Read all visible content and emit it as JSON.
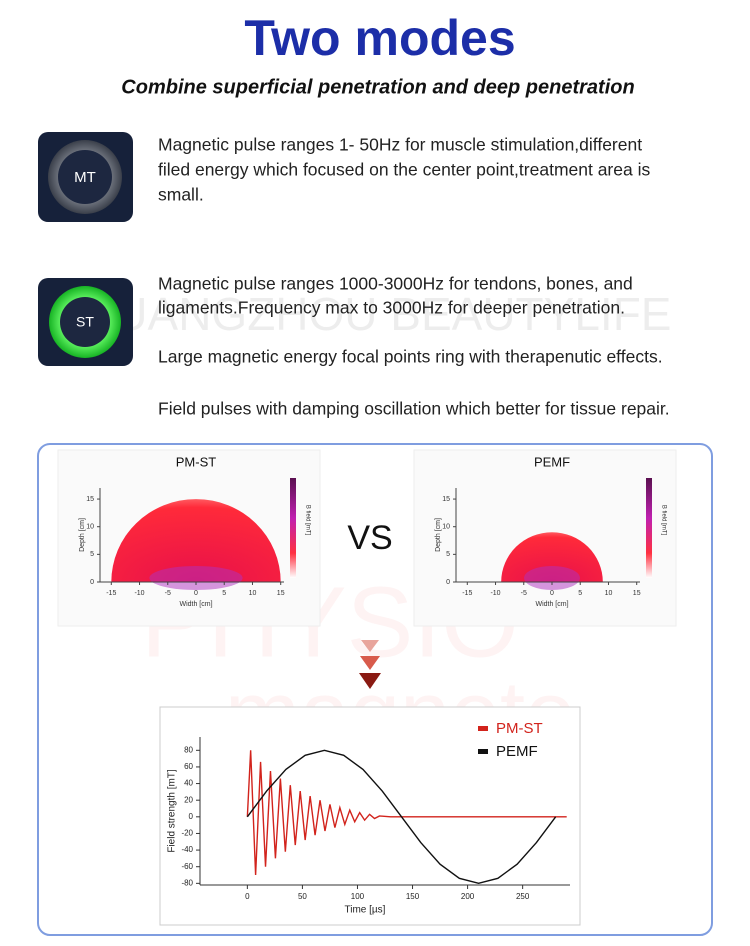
{
  "header": {
    "title": "Two modes",
    "subtitle": "Combine superficial penetration and deep penetration"
  },
  "modes": [
    {
      "icon": "MT",
      "lines": [
        "Magnetic pulse ranges 1- 50Hz for muscle stimulation,different",
        "filed energy which focused on the center point,treatment area is",
        "small."
      ]
    },
    {
      "icon": "ST",
      "lines": [
        "Magnetic pulse ranges 1000-3000Hz for tendons, bones, and",
        "ligaments.Frequency max to 3000Hz for deeper penetration.",
        "Large magnetic energy focal points ring with therapenutic effects.",
        "Field pulses with damping oscillation which better for tissue repair."
      ]
    }
  ],
  "watermarks": [
    "GUANGZHOU BEAUTYLIFE",
    "PHYSIO",
    "magneto"
  ],
  "vs": "VS",
  "heatmaps": [
    {
      "type": "heatmap",
      "title": "PM-ST",
      "x_label": "Width [cm]",
      "y_label": "Depth [cm]",
      "colorbar_label": "B field [mT]",
      "radius": 15,
      "xlim": [
        -17,
        17
      ],
      "ylim": [
        0,
        17
      ],
      "xticks": [
        -15,
        -10,
        -5,
        0,
        5,
        10,
        15
      ],
      "yticks": [
        0,
        5,
        10,
        15
      ]
    },
    {
      "type": "heatmap",
      "title": "PEMF",
      "x_label": "Width [cm]",
      "y_label": "Depth [cm]",
      "colorbar_label": "B field [mT]",
      "radius": 9,
      "xlim": [
        -17,
        17
      ],
      "ylim": [
        0,
        17
      ],
      "xticks": [
        -15,
        -10,
        -5,
        0,
        5,
        10,
        15
      ],
      "yticks": [
        0,
        5,
        10,
        15
      ]
    }
  ],
  "line_chart": {
    "type": "line",
    "x_label": "Time [µs]",
    "y_label": "Field strength [mT]",
    "xlim": [
      -43,
      293
    ],
    "ylim": [
      -82,
      96
    ],
    "xticks": [
      0,
      50,
      100,
      150,
      200,
      250
    ],
    "yticks": [
      -80,
      -60,
      -40,
      -20,
      0,
      20,
      40,
      60,
      80
    ],
    "series": [
      {
        "name": "PM-ST",
        "color": "#d2231c",
        "x": [
          0,
          3,
          7.5,
          12,
          16.5,
          21,
          25.5,
          30,
          34.5,
          39,
          43.5,
          48,
          52.5,
          57,
          61.5,
          66,
          70.5,
          75,
          79.5,
          84,
          88.5,
          93,
          97.5,
          102,
          106.5,
          111,
          115.5,
          120,
          130,
          140,
          290
        ],
        "values": [
          0,
          80,
          -70,
          66,
          -60,
          55,
          -50,
          46,
          -42,
          38,
          -34,
          31,
          -28,
          25,
          -22,
          20,
          -17,
          15,
          -13,
          11,
          -9,
          8,
          -6,
          5,
          -4,
          3,
          -2,
          1,
          0,
          0,
          0
        ]
      },
      {
        "name": "PEMF",
        "color": "#111111",
        "x": [
          0,
          17.5,
          35,
          52.5,
          70,
          87.5,
          105,
          122.5,
          140,
          157.5,
          175,
          192.5,
          210,
          227.5,
          245,
          262.5,
          280
        ],
        "values": [
          0,
          31,
          57,
          74,
          80,
          74,
          57,
          31,
          0,
          -31,
          -57,
          -74,
          -80,
          -74,
          -57,
          -31,
          0
        ]
      }
    ]
  }
}
